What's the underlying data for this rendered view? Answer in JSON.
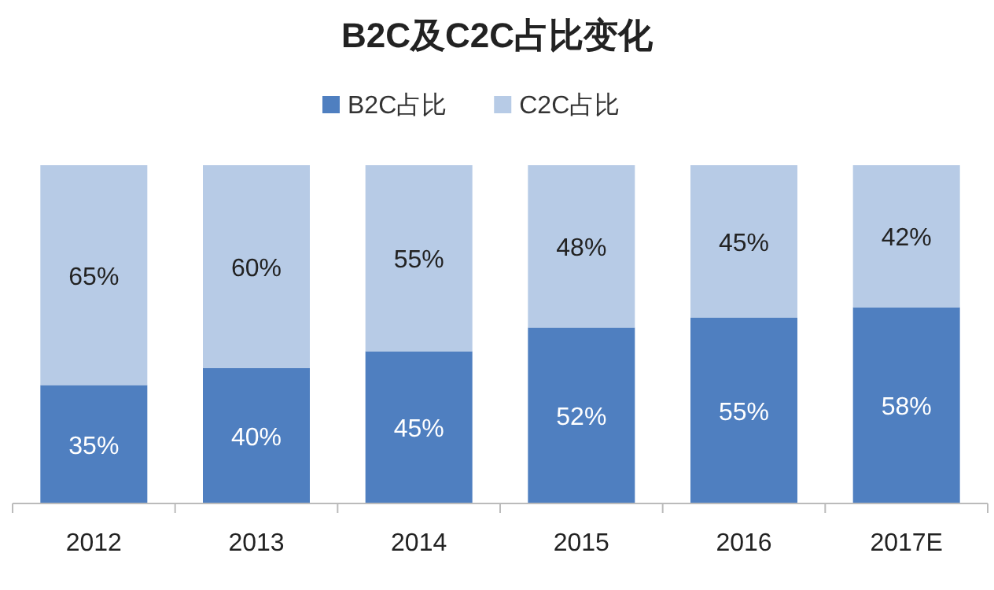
{
  "chart_data": {
    "type": "bar",
    "title": "B2C及C2C占比变化",
    "stacked": true,
    "legend": "top",
    "categories": [
      "2012",
      "2013",
      "2014",
      "2015",
      "2016",
      "2017E"
    ],
    "series": [
      {
        "name": "B2C占比",
        "color": "#4f7fc0",
        "values": [
          35,
          40,
          45,
          52,
          55,
          58
        ],
        "value_labels": [
          "35%",
          "40%",
          "45%",
          "52%",
          "55%",
          "58%"
        ]
      },
      {
        "name": "C2C占比",
        "color": "#b7cbe6",
        "values": [
          65,
          60,
          55,
          48,
          45,
          42
        ],
        "value_labels": [
          "65%",
          "60%",
          "55%",
          "48%",
          "45%",
          "42%"
        ]
      }
    ]
  }
}
